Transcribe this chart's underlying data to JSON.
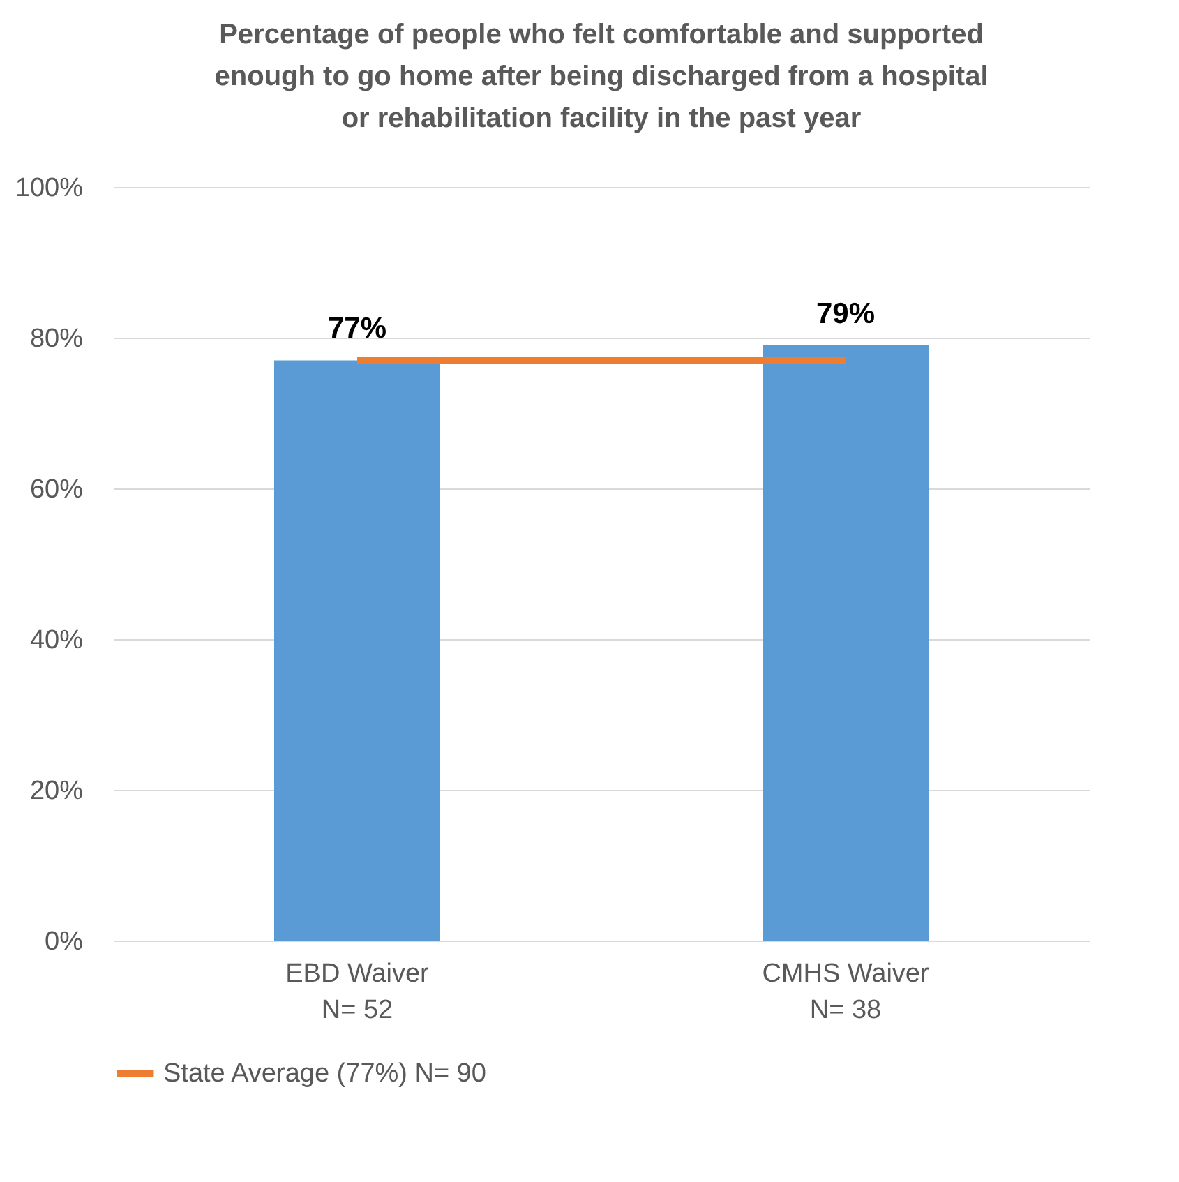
{
  "chart_data": {
    "type": "bar",
    "title": "Percentage of people who felt comfortable and supported enough to go home after being discharged from a hospital or rehabilitation facility in the past year",
    "categories": [
      "EBD Waiver\nN= 52",
      "CMHS Waiver\nN= 38"
    ],
    "series": [
      {
        "color": "#5b9bd5",
        "values": [
          77,
          79
        ],
        "value_labels": [
          "77%",
          "79%"
        ]
      },
      {
        "type": "line",
        "name": "State Average (77%) N= 90",
        "color": "#ed7d31",
        "values": [
          77,
          77
        ]
      }
    ],
    "ylim": [
      0,
      100
    ],
    "yticks": [
      {
        "value": 0,
        "label": "0%"
      },
      {
        "value": 20,
        "label": "20%"
      },
      {
        "value": 40,
        "label": "40%"
      },
      {
        "value": 60,
        "label": "60%"
      },
      {
        "value": 80,
        "label": "80%"
      },
      {
        "value": 100,
        "label": "100%"
      }
    ],
    "grid": "y",
    "legend": "bottom",
    "marker": "none",
    "line_style": "solid"
  }
}
